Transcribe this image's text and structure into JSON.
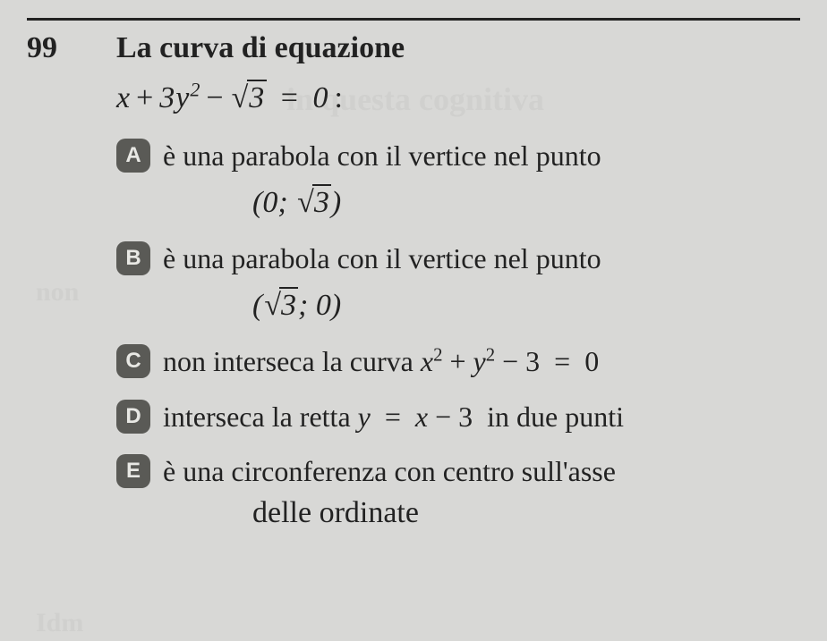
{
  "question_number": "99",
  "title": "La curva di equazione",
  "equation_html": "<span class='math'>x</span><span class='op'>+</span>3<span class='math'>y</span><sup>2</sup><span class='op'>−</span><span class='sqrt'><span class='radicand'>3</span></span><span class='op'>&nbsp;=&nbsp;</span>0<span class='op'>:</span>",
  "options": {
    "A": {
      "letter": "A",
      "text": "è una parabola con il vertice nel punto",
      "sub_html": "(0;&nbsp;<span class='sqrt'><span class='radicand'>3</span></span>)"
    },
    "B": {
      "letter": "B",
      "text": "è una parabola con il vertice nel punto",
      "sub_html": "(<span class='sqrt'><span class='radicand'>3</span></span>;&nbsp;0)"
    },
    "C": {
      "letter": "C",
      "text_html": "non interseca la curva <span class='math'>x</span><sup>2</sup> + <span class='math'>y</span><sup>2</sup> − 3 &nbsp;=&nbsp; 0"
    },
    "D": {
      "letter": "D",
      "text_html": "interseca la retta <span class='math'>y</span> &nbsp;=&nbsp; <span class='math'>x</span> − 3 &nbsp;in due punti"
    },
    "E": {
      "letter": "E",
      "text": "è una circonferenza con centro sull'asse",
      "sub_text": "delle ordinate"
    }
  },
  "colors": {
    "background": "#d8d8d6",
    "text": "#222222",
    "badge_bg": "#5a5a56",
    "badge_fg": "#e8e8e4",
    "rule": "#222222"
  },
  "typography": {
    "qnum_fontsize": 34,
    "title_fontsize": 34,
    "equation_fontsize": 34,
    "option_fontsize": 32,
    "badge_fontsize": 24
  }
}
